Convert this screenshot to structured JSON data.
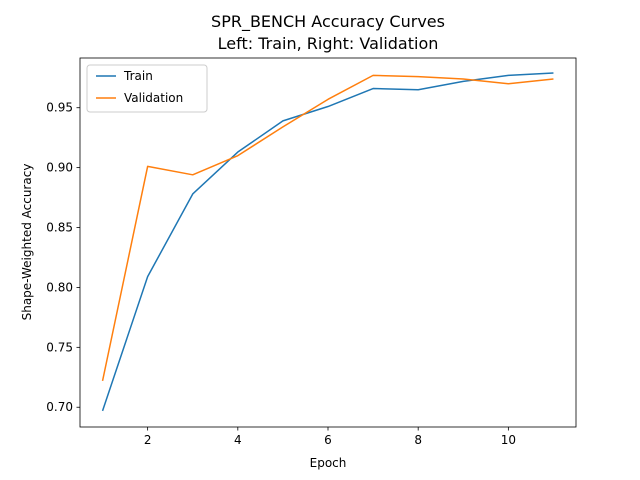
{
  "chart_data": {
    "type": "line",
    "title_line1": "SPR_BENCH Accuracy Curves",
    "title_line2": "Left: Train, Right: Validation",
    "xlabel": "Epoch",
    "ylabel": "Shape-Weighted Accuracy",
    "xlim": [
      0.5,
      11.5
    ],
    "ylim": [
      0.6835,
      0.9915
    ],
    "xticks": [
      2,
      4,
      6,
      8,
      10
    ],
    "yticks": [
      0.7,
      0.75,
      0.8,
      0.85,
      0.9,
      0.95
    ],
    "xtick_labels": [
      "2",
      "4",
      "6",
      "8",
      "10"
    ],
    "ytick_labels": [
      "0.70",
      "0.75",
      "0.80",
      "0.85",
      "0.90",
      "0.95"
    ],
    "legend_position": "upper-left",
    "grid": false,
    "x": [
      1,
      2,
      3,
      4,
      5,
      6,
      7,
      8,
      9,
      10,
      11
    ],
    "series": [
      {
        "name": "Train",
        "color": "#1f77b4",
        "values": [
          0.697,
          0.809,
          0.878,
          0.913,
          0.939,
          0.951,
          0.966,
          0.965,
          0.972,
          0.977,
          0.979
        ]
      },
      {
        "name": "Validation",
        "color": "#ff7f0e",
        "values": [
          0.722,
          0.901,
          0.894,
          0.91,
          0.934,
          0.957,
          0.977,
          0.976,
          0.974,
          0.97,
          0.974
        ]
      }
    ]
  }
}
